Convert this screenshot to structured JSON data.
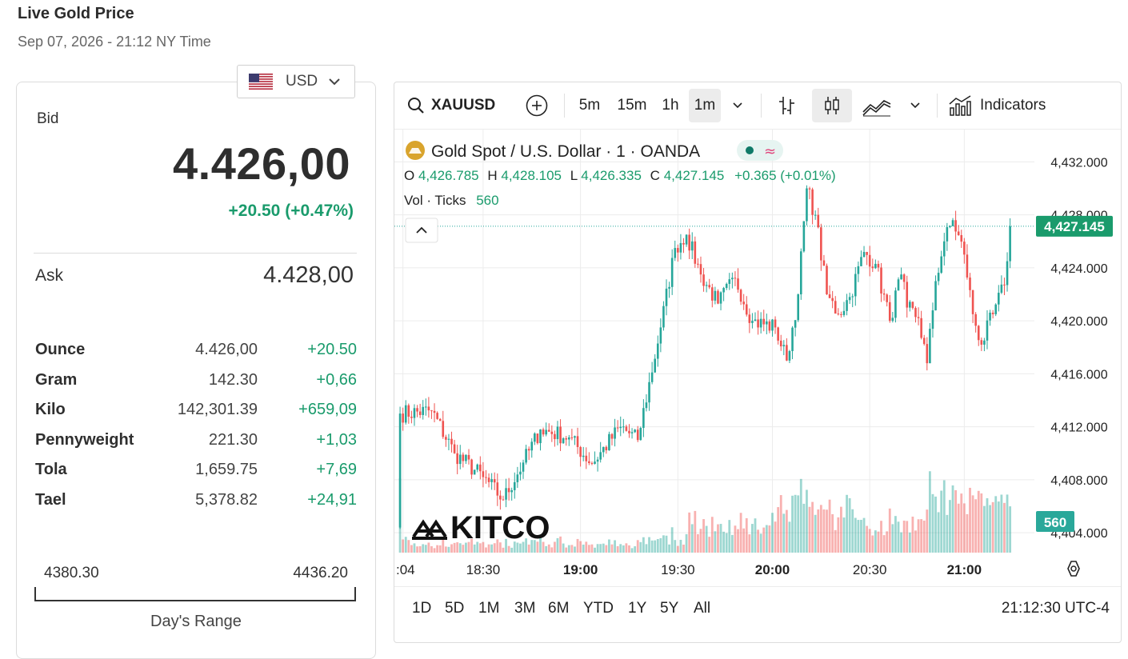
{
  "page": {
    "title": "Live Gold Price",
    "subtitle": "Sep 07, 2026 - 21:12 NY Time"
  },
  "currency": {
    "label": "USD",
    "flag": "us-flag"
  },
  "bid": {
    "label": "Bid",
    "price": "4.426,00",
    "change": "+20.50 (+0.47%)"
  },
  "ask": {
    "label": "Ask",
    "price": "4.428,00"
  },
  "units": [
    {
      "name": "Ounce",
      "price": "4.426,00",
      "change": "+20.50"
    },
    {
      "name": "Gram",
      "price": "142.30",
      "change": "+0,66"
    },
    {
      "name": "Kilo",
      "price": "142,301.39",
      "change": "+659,09"
    },
    {
      "name": "Pennyweight",
      "price": "221.30",
      "change": "+1,03"
    },
    {
      "name": "Tola",
      "price": "1,659.75",
      "change": "+7,69"
    },
    {
      "name": "Tael",
      "price": "5,378.82",
      "change": "+24,91"
    }
  ],
  "day_range": {
    "low": "4380.30",
    "high": "4436.20",
    "label": "Day's Range"
  },
  "toolbar": {
    "symbol": "XAUUSD",
    "intervals": [
      "5m",
      "15m",
      "1h",
      "1m"
    ],
    "active_interval": "1m",
    "indicators_label": "Indicators"
  },
  "legend": {
    "title": "Gold Spot",
    "pair": "U.S. Dollar",
    "interval": "1",
    "source": "OANDA",
    "o_label": "O",
    "o_value": "4,426.785",
    "h_label": "H",
    "h_value": "4,428.105",
    "l_label": "L",
    "l_value": "4,426.335",
    "c_label": "C",
    "c_value": "4,427.145",
    "change": "+0.365 (+0.01%)",
    "vol_label": "Vol · Ticks",
    "vol_value": "560"
  },
  "watermark": "KITCO",
  "ranges": [
    "1D",
    "5D",
    "1M",
    "3M",
    "6M",
    "YTD",
    "1Y",
    "5Y",
    "All"
  ],
  "time_readout": "21:12:30 UTC-4",
  "colors": {
    "up": "#26a69a",
    "down": "#ef5350",
    "accent": "#1a9b6c"
  },
  "chart_data": {
    "type": "candlestick",
    "symbol": "XAUUSD",
    "y_ticks": [
      "4,432.000",
      "4,428.000",
      "4,424.000",
      "4,420.000",
      "4,416.000",
      "4,412.000",
      "4,408.000",
      "4,404.000"
    ],
    "y_tick_values": [
      4432,
      4428,
      4424,
      4420,
      4416,
      4412,
      4408,
      4404
    ],
    "x_ticks": [
      ":04",
      "18:30",
      "19:00",
      "19:30",
      "20:00",
      "20:30",
      "21:00"
    ],
    "ylim": [
      4402.5,
      4434.5
    ],
    "last_price_label": "4,427.145",
    "last_price": 4427.145,
    "last_volume_label": "560",
    "keypoints": [
      [
        0,
        4404.4
      ],
      [
        1,
        4413.0
      ],
      [
        12,
        4413.2
      ],
      [
        20,
        4410.0
      ],
      [
        30,
        4408.2
      ],
      [
        37,
        4406.5
      ],
      [
        44,
        4409.3
      ],
      [
        50,
        4411.8
      ],
      [
        60,
        4411.2
      ],
      [
        68,
        4409.2
      ],
      [
        78,
        4412.0
      ],
      [
        84,
        4411.0
      ],
      [
        92,
        4419.5
      ],
      [
        97,
        4425.5
      ],
      [
        101,
        4426.5
      ],
      [
        106,
        4423.5
      ],
      [
        112,
        4421.3
      ],
      [
        118,
        4423.2
      ],
      [
        124,
        4420.0
      ],
      [
        132,
        4419.5
      ],
      [
        136,
        4417.0
      ],
      [
        140,
        4422.0
      ],
      [
        143,
        4430.0
      ],
      [
        146,
        4428.0
      ],
      [
        150,
        4422.0
      ],
      [
        154,
        4420.5
      ],
      [
        158,
        4421.8
      ],
      [
        163,
        4425.2
      ],
      [
        167,
        4424.3
      ],
      [
        172,
        4420.0
      ],
      [
        176,
        4423.5
      ],
      [
        178,
        4421.0
      ],
      [
        182,
        4420.2
      ],
      [
        185,
        4416.8
      ],
      [
        188,
        4423.0
      ],
      [
        191,
        4426.0
      ],
      [
        194,
        4427.6
      ],
      [
        198,
        4425.0
      ],
      [
        201,
        4420.5
      ],
      [
        204,
        4418.2
      ],
      [
        208,
        4420.5
      ],
      [
        212,
        4422.7
      ],
      [
        214,
        4427.145
      ]
    ]
  }
}
